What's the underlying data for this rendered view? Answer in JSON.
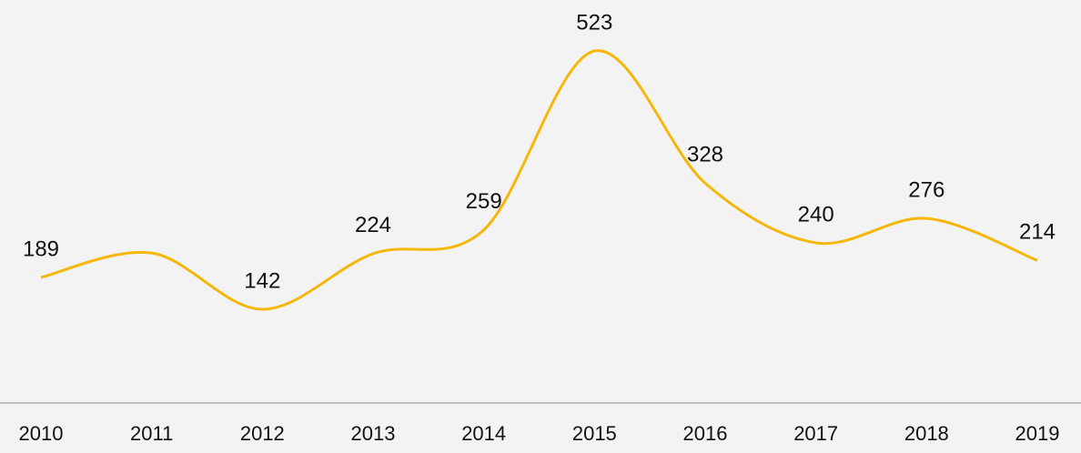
{
  "chart_data": {
    "type": "line",
    "x": [
      "2010",
      "2011",
      "2012",
      "2013",
      "2014",
      "2015",
      "2016",
      "2017",
      "2018",
      "2019"
    ],
    "values": [
      189,
      225,
      142,
      224,
      259,
      523,
      328,
      240,
      276,
      214
    ],
    "value_labels": [
      "189",
      null,
      "142",
      "224",
      "259",
      "523",
      "328",
      "240",
      "276",
      "214"
    ],
    "color": "#f5b70a"
  }
}
